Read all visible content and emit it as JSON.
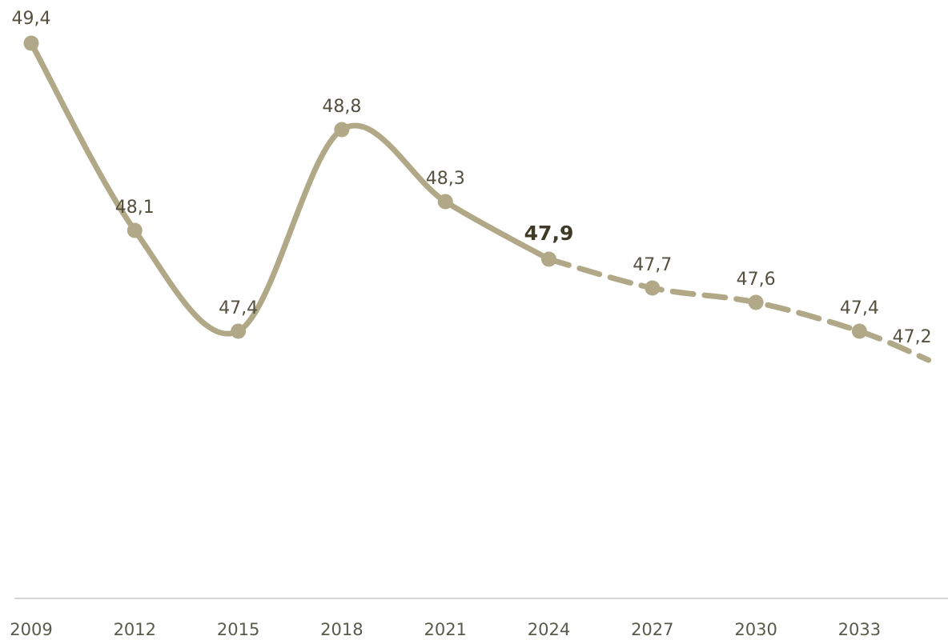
{
  "chart_data": {
    "type": "line",
    "title": "",
    "xlabel": "",
    "ylabel": "",
    "x_ticks": [
      "2009",
      "2012",
      "2015",
      "2018",
      "2021",
      "2024",
      "2027",
      "2030",
      "2033"
    ],
    "grid": false,
    "legend": "none",
    "highlight_year": 2024,
    "actual": [
      {
        "x": 2009,
        "y": 49.4,
        "label": "49,4"
      },
      {
        "x": 2012,
        "y": 48.1,
        "label": "48,1"
      },
      {
        "x": 2015,
        "y": 47.4,
        "label": "47,4"
      },
      {
        "x": 2018,
        "y": 48.8,
        "label": "48,8"
      },
      {
        "x": 2021,
        "y": 48.3,
        "label": "48,3"
      },
      {
        "x": 2024,
        "y": 47.9,
        "label": "47,9"
      }
    ],
    "forecast": [
      {
        "x": 2024,
        "y": 47.9,
        "label": "47,9"
      },
      {
        "x": 2027,
        "y": 47.7,
        "label": "47,7"
      },
      {
        "x": 2030,
        "y": 47.6,
        "label": "47,6"
      },
      {
        "x": 2033,
        "y": 47.4,
        "label": "47,4"
      },
      {
        "x": 2035,
        "y": 47.2,
        "label": "47,2"
      }
    ],
    "colors": {
      "line": "#b0a886",
      "axis": "#d6d6d6",
      "text": "#55503f",
      "highlight_text": "#3f3a28"
    }
  }
}
